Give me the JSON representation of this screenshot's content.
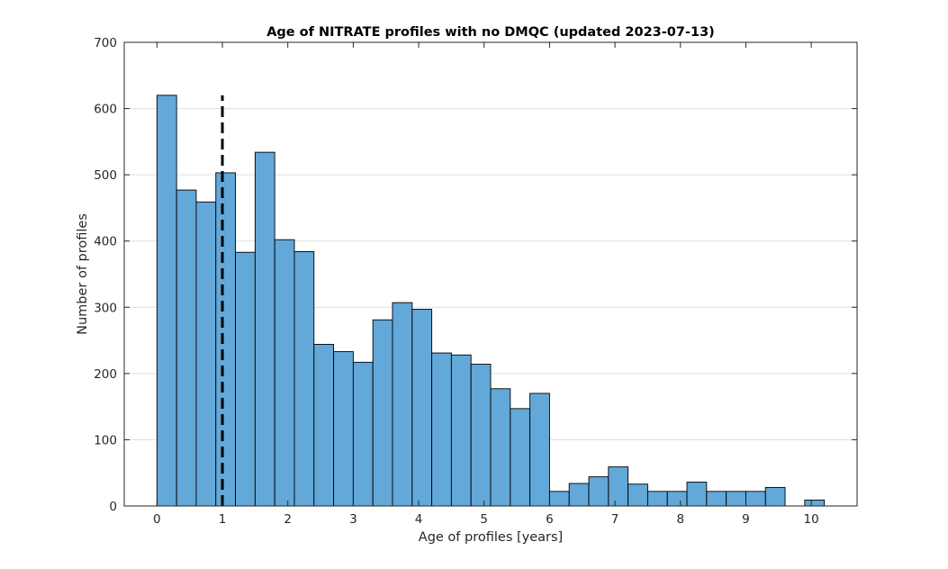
{
  "chart_data": {
    "type": "bar",
    "title": "Age of NITRATE profiles with no DMQC (updated 2023-07-13)",
    "xlabel": "Age of profiles [years]",
    "ylabel": "Number of profiles",
    "xlim": [
      -0.5,
      10.7
    ],
    "ylim": [
      0,
      700
    ],
    "xticks": [
      0,
      1,
      2,
      3,
      4,
      5,
      6,
      7,
      8,
      9,
      10
    ],
    "yticks": [
      0,
      100,
      200,
      300,
      400,
      500,
      600,
      700
    ],
    "grid": "y",
    "bin_width": 0.3,
    "bins": [
      {
        "x0": 0.0,
        "value": 620
      },
      {
        "x0": 0.3,
        "value": 477
      },
      {
        "x0": 0.6,
        "value": 459
      },
      {
        "x0": 0.9,
        "value": 503
      },
      {
        "x0": 1.2,
        "value": 383
      },
      {
        "x0": 1.5,
        "value": 534
      },
      {
        "x0": 1.8,
        "value": 402
      },
      {
        "x0": 2.1,
        "value": 384
      },
      {
        "x0": 2.4,
        "value": 244
      },
      {
        "x0": 2.7,
        "value": 233
      },
      {
        "x0": 3.0,
        "value": 217
      },
      {
        "x0": 3.3,
        "value": 281
      },
      {
        "x0": 3.6,
        "value": 307
      },
      {
        "x0": 3.9,
        "value": 297
      },
      {
        "x0": 4.2,
        "value": 231
      },
      {
        "x0": 4.5,
        "value": 228
      },
      {
        "x0": 4.8,
        "value": 214
      },
      {
        "x0": 5.1,
        "value": 177
      },
      {
        "x0": 5.4,
        "value": 147
      },
      {
        "x0": 5.7,
        "value": 170
      },
      {
        "x0": 6.0,
        "value": 22
      },
      {
        "x0": 6.3,
        "value": 34
      },
      {
        "x0": 6.6,
        "value": 44
      },
      {
        "x0": 6.9,
        "value": 59
      },
      {
        "x0": 7.2,
        "value": 33
      },
      {
        "x0": 7.5,
        "value": 22
      },
      {
        "x0": 7.8,
        "value": 22
      },
      {
        "x0": 8.1,
        "value": 36
      },
      {
        "x0": 8.4,
        "value": 22
      },
      {
        "x0": 8.7,
        "value": 22
      },
      {
        "x0": 9.0,
        "value": 22
      },
      {
        "x0": 9.3,
        "value": 28
      },
      {
        "x0": 9.9,
        "value": 9
      }
    ],
    "reference_line": {
      "x": 1,
      "y_max": 620,
      "style": "dashed",
      "color": "#000000"
    },
    "bar_color": "#62a8d8",
    "edge_color": "#000000"
  }
}
